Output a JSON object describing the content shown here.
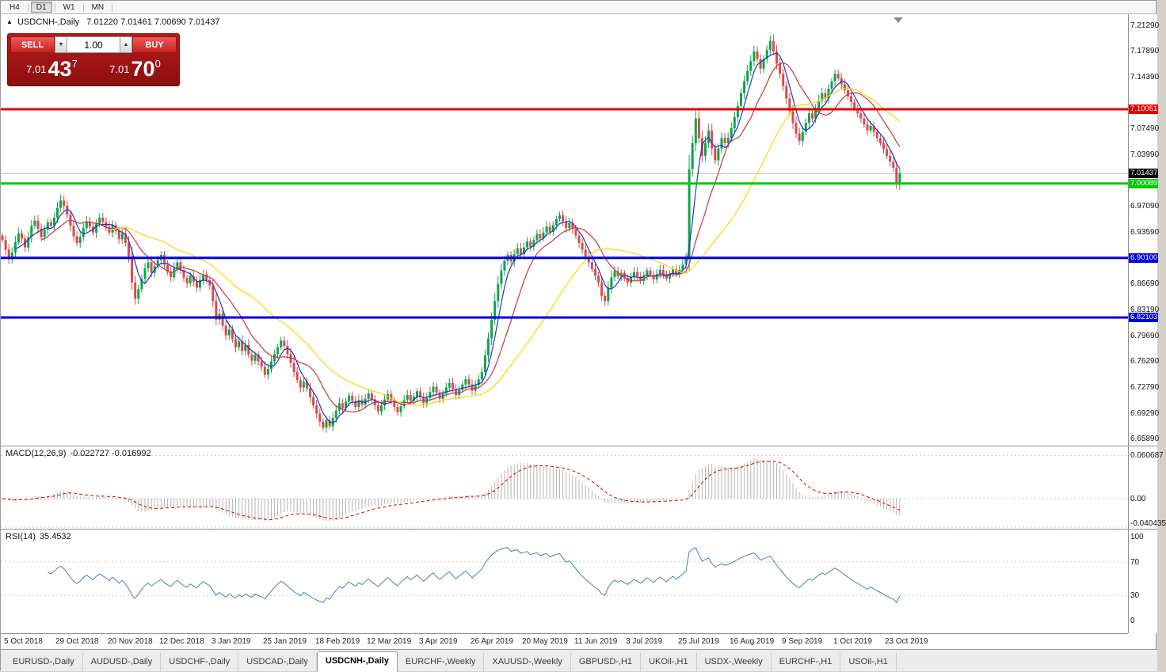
{
  "toolbar": {
    "timeframes": [
      {
        "label": "H4",
        "active": false
      },
      {
        "label": "D1",
        "active": true
      },
      {
        "label": "W1",
        "active": false
      },
      {
        "label": "MN",
        "active": false
      }
    ]
  },
  "chart": {
    "symbol_text": "USDCNH-,Daily",
    "ohlc_text": "7.01220 7.01461 7.00690 7.01437"
  },
  "trade": {
    "sell_label": "SELL",
    "buy_label": "BUY",
    "volume": "1.00",
    "sell_price_base": "7.01",
    "sell_price_big": "43",
    "sell_price_sup": "7",
    "buy_price_base": "7.01",
    "buy_price_big": "70",
    "buy_price_sup": "0"
  },
  "macd": {
    "label": "MACD(12,26,9)",
    "values_text": "-0.022727 -0.016992",
    "params": {
      "fast": 12,
      "slow": 26,
      "signal": 9
    },
    "axis_labels": [
      {
        "value": 0.060687,
        "text": "0.060687"
      },
      {
        "value": 0,
        "text": "0.00"
      },
      {
        "value": -0.040435,
        "text": "-0.040435"
      }
    ],
    "histogram_color": "#b4b4b4",
    "signal_color": "#cc0000"
  },
  "rsi": {
    "label": "RSI(14)",
    "value_text": "35.4532",
    "period": 14,
    "levels": [
      70,
      30
    ],
    "axis_labels": [
      {
        "value": 100,
        "text": "100"
      },
      {
        "value": 70,
        "text": "70"
      },
      {
        "value": 30,
        "text": "30"
      },
      {
        "value": 0,
        "text": "0"
      }
    ],
    "line_color": "#4682b4"
  },
  "tabs": [
    {
      "label": "EURUSD-,Daily",
      "active": false
    },
    {
      "label": "AUDUSD-,Daily",
      "active": false
    },
    {
      "label": "USDCHF-,Daily",
      "active": false
    },
    {
      "label": "USDCAD-,Daily",
      "active": false
    },
    {
      "label": "USDCNH-,Daily",
      "active": true
    },
    {
      "label": "EURCHF-,Weekly",
      "active": false
    },
    {
      "label": "XAUUSD-,Weekly",
      "active": false
    },
    {
      "label": "GBPUSD-,H1",
      "active": false
    },
    {
      "label": "UKOil-,H1",
      "active": false
    },
    {
      "label": "USDX-,Weekly",
      "active": false
    },
    {
      "label": "EURCHF-,H1",
      "active": false
    },
    {
      "label": "USOil-,H1",
      "active": false
    }
  ],
  "chart_data": {
    "type": "candlestick",
    "symbol": "USDCNH-",
    "period": "Daily",
    "up_color": "#0fa44a",
    "down_color": "#d84b4b",
    "price_range": {
      "max": 7.228,
      "min": 6.649
    },
    "x_label_step": 16,
    "x_labels": [
      "5 Oct 2018",
      "29 Oct 2018",
      "20 Nov 2018",
      "12 Dec 2018",
      "3 Jan 2019",
      "25 Jan 2019",
      "18 Feb 2019",
      "12 Mar 2019",
      "3 Apr 2019",
      "26 Apr 2019",
      "20 May 2019",
      "11 Jun 2019",
      "3 Jul 2019",
      "25 Jul 2019",
      "16 Aug 2019",
      "9 Sep 2019",
      "1 Oct 2019",
      "23 Oct 2019"
    ],
    "price_ticks": [
      "7.21290",
      "7.17890",
      "7.14390",
      "7.07490",
      "7.03990",
      "6.97090",
      "6.93590",
      "6.86690",
      "6.83190",
      "6.79690",
      "6.76290",
      "6.72790",
      "6.69290",
      "6.65890"
    ],
    "levels": [
      {
        "price": 7.10051,
        "label": "7.10051",
        "color": "#e60000"
      },
      {
        "price": 7.00089,
        "label": "7.00089",
        "color": "#00cc00"
      },
      {
        "price": 6.901,
        "label": "6.90100",
        "color": "#0000d9"
      },
      {
        "price": 6.82103,
        "label": "6.82103",
        "color": "#0000d9"
      }
    ],
    "current_price": {
      "value": 7.01437,
      "label": "7.01437",
      "label_bg": "#000000"
    },
    "ma_lines": [
      {
        "period": 5,
        "color": "#2233cc"
      },
      {
        "period": 13,
        "color": "#cc3344"
      },
      {
        "period": 34,
        "color": "#ffd400"
      }
    ],
    "closes": [
      6.925,
      6.912,
      6.899,
      6.908,
      6.922,
      6.934,
      6.927,
      6.915,
      6.929,
      6.944,
      6.951,
      6.94,
      6.929,
      6.939,
      6.949,
      6.944,
      6.955,
      6.968,
      6.978,
      6.971,
      6.959,
      6.944,
      6.93,
      6.921,
      6.929,
      6.941,
      6.95,
      6.943,
      6.935,
      6.947,
      6.955,
      6.949,
      6.943,
      6.935,
      6.945,
      6.937,
      6.926,
      6.934,
      6.921,
      6.903,
      6.868,
      6.846,
      6.859,
      6.873,
      6.887,
      6.895,
      6.881,
      6.89,
      6.898,
      6.905,
      6.892,
      6.883,
      6.875,
      6.887,
      6.895,
      6.885,
      6.874,
      6.867,
      6.877,
      6.869,
      6.861,
      6.871,
      6.879,
      6.871,
      6.864,
      6.843,
      6.818,
      6.826,
      6.81,
      6.797,
      6.805,
      6.792,
      6.781,
      6.789,
      6.776,
      6.784,
      6.771,
      6.763,
      6.771,
      6.762,
      6.755,
      6.744,
      6.752,
      6.762,
      6.772,
      6.781,
      6.79,
      6.783,
      6.772,
      6.76,
      6.748,
      6.737,
      6.727,
      6.735,
      6.726,
      6.714,
      6.703,
      6.692,
      6.681,
      6.673,
      6.683,
      6.675,
      6.686,
      6.696,
      6.706,
      6.699,
      6.708,
      6.716,
      6.709,
      6.701,
      6.71,
      6.704,
      6.712,
      6.719,
      6.711,
      6.703,
      6.695,
      6.703,
      6.711,
      6.718,
      6.71,
      6.701,
      6.694,
      6.702,
      6.71,
      6.717,
      6.709,
      6.715,
      6.722,
      6.714,
      6.706,
      6.713,
      6.721,
      6.728,
      6.72,
      6.712,
      6.719,
      6.727,
      6.733,
      6.725,
      6.717,
      6.724,
      6.731,
      6.738,
      6.731,
      6.723,
      6.73,
      6.738,
      6.748,
      6.77,
      6.793,
      6.818,
      6.843,
      6.866,
      6.884,
      6.897,
      6.905,
      6.896,
      6.906,
      6.914,
      6.906,
      6.915,
      6.923,
      6.916,
      6.925,
      6.933,
      6.927,
      6.935,
      6.943,
      6.936,
      6.945,
      6.953,
      6.958,
      6.95,
      6.941,
      6.948,
      6.94,
      6.931,
      6.921,
      6.912,
      6.903,
      6.895,
      6.886,
      6.877,
      6.868,
      6.85,
      6.843,
      6.861,
      6.875,
      6.883,
      6.876,
      6.881,
      6.874,
      6.868,
      6.875,
      6.882,
      6.876,
      6.87,
      6.877,
      6.884,
      6.878,
      6.872,
      6.879,
      6.885,
      6.879,
      6.873,
      6.88,
      6.886,
      6.88,
      6.885,
      6.892,
      6.9,
      7.02,
      7.055,
      7.088,
      7.062,
      7.038,
      7.055,
      7.072,
      7.048,
      7.032,
      7.048,
      7.062,
      7.055,
      7.062,
      7.075,
      7.09,
      7.105,
      7.122,
      7.138,
      7.152,
      7.165,
      7.178,
      7.168,
      7.155,
      7.168,
      7.18,
      7.192,
      7.178,
      7.162,
      7.148,
      7.132,
      7.115,
      7.098,
      7.082,
      7.068,
      7.058,
      7.07,
      7.082,
      7.095,
      7.088,
      7.1,
      7.112,
      7.122,
      7.115,
      7.128,
      7.138,
      7.148,
      7.142,
      7.134,
      7.126,
      7.118,
      7.11,
      7.102,
      7.095,
      7.088,
      7.08,
      7.072,
      7.078,
      7.07,
      7.062,
      7.055,
      7.047,
      7.038,
      7.03,
      7.022,
      7.0,
      7.01437
    ]
  }
}
